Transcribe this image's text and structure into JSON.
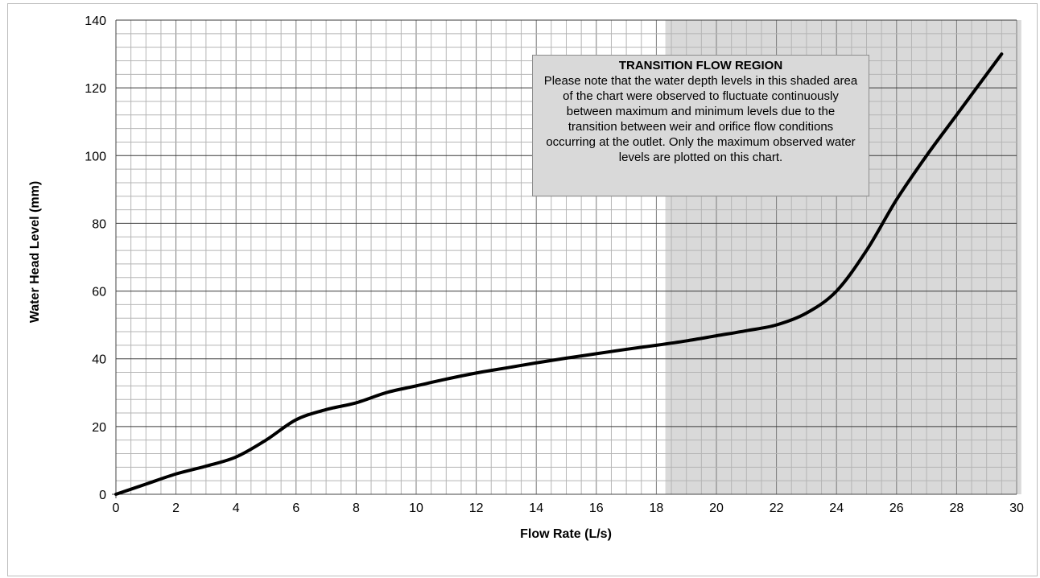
{
  "chart_data": {
    "type": "line",
    "xlabel": "Flow Rate (L/s)",
    "ylabel": "Water Head Level (mm)",
    "xlim": [
      0,
      30
    ],
    "ylim": [
      0,
      140
    ],
    "x_ticks": [
      "0",
      "2",
      "4",
      "6",
      "8",
      "10",
      "12",
      "14",
      "16",
      "18",
      "20",
      "22",
      "24",
      "26",
      "28",
      "30"
    ],
    "y_ticks": [
      "0",
      "20",
      "40",
      "60",
      "80",
      "100",
      "120",
      "140"
    ],
    "grid": "major and minor",
    "series": [
      {
        "x": [
          0,
          1,
          2,
          3,
          4,
          5,
          6,
          7,
          8,
          9,
          10,
          11,
          12,
          13,
          14,
          15,
          16,
          17,
          18,
          19,
          20,
          21,
          22,
          23,
          24,
          25,
          26,
          27,
          28,
          29.5
        ],
        "y": [
          0,
          3,
          6,
          8.3,
          11,
          16,
          22,
          25,
          27,
          30,
          32,
          34,
          35.8,
          37.3,
          38.8,
          40.2,
          41.5,
          42.8,
          44,
          45.3,
          46.8,
          48.3,
          50,
          53.5,
          60,
          72,
          87,
          100,
          112,
          130
        ],
        "color": "#000000"
      }
    ],
    "shaded_region": {
      "x_start": 18.3,
      "x_end": 30.1,
      "color": "#d9d9d9"
    },
    "annotation": {
      "title": "TRANSITION FLOW REGION",
      "text": "Please note that the water depth levels in this shaded area of the chart were observed to fluctuate continuously between maximum and minimum levels due to the transition between weir and orifice flow conditions occurring at the outlet. Only the maximum observed water levels are plotted on this chart."
    }
  }
}
